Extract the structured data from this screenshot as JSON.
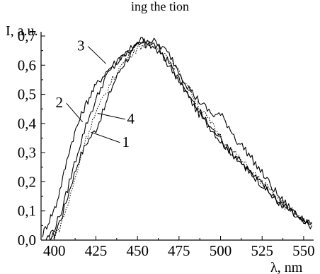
{
  "top_text": "ing the   tion",
  "chart_data": {
    "type": "line",
    "xlabel": "λ, nm",
    "ylabel": "I, a.u.",
    "xlim": [
      392,
      556
    ],
    "ylim": [
      0.0,
      0.7
    ],
    "x_ticks": [
      400,
      425,
      450,
      475,
      500,
      525,
      550
    ],
    "x_tick_labels": [
      "400",
      "425",
      "450",
      "475",
      "500",
      "525",
      "550"
    ],
    "y_ticks": [
      0.0,
      0.1,
      0.2,
      0.3,
      0.4,
      0.5,
      0.6,
      0.7
    ],
    "y_tick_labels": [
      "0,0",
      "0,1",
      "0,2",
      "0,3",
      "0,4",
      "0,5",
      "0,6",
      "0,7"
    ],
    "grid": false,
    "legend": "none",
    "series": [
      {
        "name": "1",
        "style": "solid",
        "x": [
          396,
          400,
          405,
          410,
          415,
          420,
          425,
          430,
          435,
          440,
          445,
          450,
          455,
          460,
          465,
          470,
          475,
          480,
          485,
          490,
          495,
          500,
          505,
          510,
          515,
          520,
          525,
          530,
          535,
          540,
          545,
          550,
          555
        ],
        "y": [
          0.0,
          0.02,
          0.09,
          0.19,
          0.28,
          0.34,
          0.38,
          0.45,
          0.53,
          0.59,
          0.63,
          0.67,
          0.68,
          0.67,
          0.64,
          0.6,
          0.55,
          0.5,
          0.45,
          0.41,
          0.38,
          0.34,
          0.31,
          0.28,
          0.25,
          0.22,
          0.19,
          0.16,
          0.13,
          0.11,
          0.08,
          0.06,
          0.05
        ]
      },
      {
        "name": "2",
        "style": "solid",
        "x": [
          393,
          397,
          401,
          405,
          409,
          413,
          417,
          421,
          425,
          430,
          435,
          440,
          445,
          450,
          455,
          460,
          465,
          470,
          475,
          480,
          485,
          490,
          495,
          500,
          505,
          510,
          515,
          520,
          525,
          530,
          535,
          540,
          545,
          550,
          555
        ],
        "y": [
          0.02,
          0.07,
          0.12,
          0.21,
          0.31,
          0.38,
          0.44,
          0.49,
          0.53,
          0.57,
          0.6,
          0.63,
          0.65,
          0.67,
          0.67,
          0.66,
          0.63,
          0.59,
          0.55,
          0.5,
          0.46,
          0.42,
          0.38,
          0.35,
          0.31,
          0.28,
          0.25,
          0.22,
          0.19,
          0.16,
          0.13,
          0.11,
          0.09,
          0.07,
          0.06
        ]
      },
      {
        "name": "3",
        "style": "solid",
        "x": [
          395,
          400,
          405,
          410,
          415,
          420,
          425,
          430,
          435,
          440,
          445,
          450,
          455,
          460,
          465,
          470,
          475,
          480,
          485,
          490,
          495,
          500,
          505,
          510,
          515,
          520,
          525,
          530,
          535,
          540,
          545,
          550,
          555
        ],
        "y": [
          0.0,
          0.04,
          0.11,
          0.22,
          0.32,
          0.41,
          0.48,
          0.55,
          0.59,
          0.62,
          0.65,
          0.68,
          0.69,
          0.68,
          0.66,
          0.63,
          0.58,
          0.53,
          0.49,
          0.46,
          0.43,
          0.43,
          0.39,
          0.34,
          0.31,
          0.27,
          0.23,
          0.19,
          0.15,
          0.12,
          0.09,
          0.07,
          0.06
        ]
      },
      {
        "name": "4",
        "style": "dotted",
        "x": [
          398,
          403,
          408,
          413,
          418,
          423,
          428,
          433,
          438,
          443,
          448,
          453,
          458,
          463,
          468,
          473,
          478,
          483,
          488,
          493,
          498,
          503,
          508,
          513,
          518,
          523,
          528,
          533,
          538,
          543,
          548,
          553
        ],
        "y": [
          0.0,
          0.04,
          0.12,
          0.22,
          0.33,
          0.41,
          0.47,
          0.53,
          0.58,
          0.62,
          0.65,
          0.67,
          0.67,
          0.66,
          0.63,
          0.59,
          0.55,
          0.5,
          0.45,
          0.41,
          0.37,
          0.33,
          0.3,
          0.27,
          0.24,
          0.21,
          0.18,
          0.15,
          0.12,
          0.1,
          0.08,
          0.06
        ]
      }
    ],
    "annotations": [
      {
        "text": "3",
        "series": "3",
        "at_x": 431,
        "at_y": 0.605,
        "label_x": 416,
        "label_y": 0.65
      },
      {
        "text": "2",
        "series": "2",
        "at_x": 417,
        "at_y": 0.405,
        "label_x": 403,
        "label_y": 0.455
      },
      {
        "text": "4",
        "series": "4",
        "at_x": 426,
        "at_y": 0.435,
        "label_x": 446,
        "label_y": 0.4
      },
      {
        "text": "1",
        "series": "1",
        "at_x": 422,
        "at_y": 0.37,
        "label_x": 443,
        "label_y": 0.32
      }
    ]
  }
}
